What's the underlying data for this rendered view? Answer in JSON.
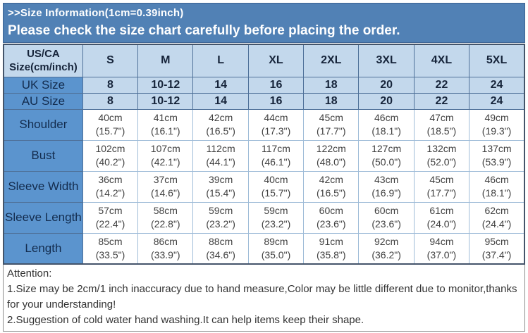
{
  "banner": {
    "title": ">>Size Information(1cm=0.39inch)",
    "subtitle": "Please check the size chart carefully before placing the order."
  },
  "colors": {
    "banner_bg": "#5181B5",
    "header_cell_bg": "#C3D8EC",
    "label_cell_bg": "#5B94CE",
    "table_border": "#4F7199",
    "outer_border": "#44546A"
  },
  "table": {
    "corner": {
      "line1": "US/CA",
      "line2": "Size(cm/inch)"
    },
    "size_columns": [
      "S",
      "M",
      "L",
      "XL",
      "2XL",
      "3XL",
      "4XL",
      "5XL"
    ],
    "size_rows": [
      {
        "label": "UK Size",
        "values": [
          "8",
          "10-12",
          "14",
          "16",
          "18",
          "20",
          "22",
          "24"
        ]
      },
      {
        "label": "AU Size",
        "values": [
          "8",
          "10-12",
          "14",
          "16",
          "18",
          "20",
          "22",
          "24"
        ]
      }
    ],
    "measurement_rows": [
      {
        "label": "Shoulder",
        "cells": [
          [
            "40cm",
            "(15.7\")"
          ],
          [
            "41cm",
            "(16.1\")"
          ],
          [
            "42cm",
            "(16.5\")"
          ],
          [
            "44cm",
            "(17.3\")"
          ],
          [
            "45cm",
            "(17.7\")"
          ],
          [
            "46cm",
            "(18.1\")"
          ],
          [
            "47cm",
            "(18.5\")"
          ],
          [
            "49cm",
            "(19.3\")"
          ]
        ]
      },
      {
        "label": "Bust",
        "cells": [
          [
            "102cm",
            "(40.2\")"
          ],
          [
            "107cm",
            "(42.1\")"
          ],
          [
            "112cm",
            "(44.1\")"
          ],
          [
            "117cm",
            "(46.1\")"
          ],
          [
            "122cm",
            "(48.0\")"
          ],
          [
            "127cm",
            "(50.0\")"
          ],
          [
            "132cm",
            "(52.0\")"
          ],
          [
            "137cm",
            "(53.9\")"
          ]
        ]
      },
      {
        "label": "Sleeve Width",
        "cells": [
          [
            "36cm",
            "(14.2\")"
          ],
          [
            "37cm",
            "(14.6\")"
          ],
          [
            "39cm",
            "(15.4\")"
          ],
          [
            "40cm",
            "(15.7\")"
          ],
          [
            "42cm",
            "(16.5\")"
          ],
          [
            "43cm",
            "(16.9\")"
          ],
          [
            "45cm",
            "(17.7\")"
          ],
          [
            "46cm",
            "(18.1\")"
          ]
        ]
      },
      {
        "label": "Sleeve Length",
        "cells": [
          [
            "57cm",
            "(22.4\")"
          ],
          [
            "58cm",
            "(22.8\")"
          ],
          [
            "59cm",
            "(23.2\")"
          ],
          [
            "59cm",
            "(23.2\")"
          ],
          [
            "60cm",
            "(23.6\")"
          ],
          [
            "60cm",
            "(23.6\")"
          ],
          [
            "61cm",
            "(24.0\")"
          ],
          [
            "62cm",
            "(24.4\")"
          ]
        ]
      },
      {
        "label": "Length",
        "cells": [
          [
            "85cm",
            "(33.5\")"
          ],
          [
            "86cm",
            "(33.9\")"
          ],
          [
            "88cm",
            "(34.6\")"
          ],
          [
            "89cm",
            "(35.0\")"
          ],
          [
            "91cm",
            "(35.8\")"
          ],
          [
            "92cm",
            "(36.2\")"
          ],
          [
            "94cm",
            "(37.0\")"
          ],
          [
            "95cm",
            "(37.4\")"
          ]
        ]
      }
    ]
  },
  "attention": {
    "heading": "Attention:",
    "notes": [
      "1.Size may be 2cm/1 inch inaccuracy due to hand measure,Color may be little different due to monitor,thanks for your understanding!",
      "2.Suggestion of cold water hand washing.It can help items keep their shape."
    ]
  }
}
